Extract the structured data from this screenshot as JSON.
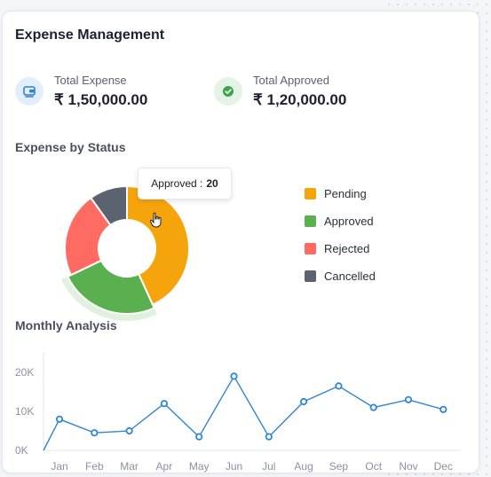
{
  "header": {
    "title": "Expense Management"
  },
  "stats": [
    {
      "label": "Total Expense",
      "value": "₹ 1,50,000.00",
      "icon": "wallet-icon",
      "icon_color": "#2f80d6",
      "icon_bg": "#e3eefb"
    },
    {
      "label": "Total Approved",
      "value": "₹ 1,20,000.00",
      "icon": "check-circle-icon",
      "icon_color": "#3fa34d",
      "icon_bg": "#e4f3e6"
    }
  ],
  "status_section": {
    "title": "Expense by Status"
  },
  "tooltip": {
    "label": "Approved :",
    "value": "20"
  },
  "legend": [
    {
      "label": "Pending",
      "color": "#f5a40c"
    },
    {
      "label": "Approved",
      "color": "#5aaf4f"
    },
    {
      "label": "Rejected",
      "color": "#ff6b62"
    },
    {
      "label": "Cancelled",
      "color": "#5c6270"
    }
  ],
  "monthly_section": {
    "title": "Monthly Analysis"
  },
  "chart_data": [
    {
      "type": "pie",
      "variant": "donut",
      "categories": [
        "Pending",
        "Approved",
        "Rejected",
        "Cancelled"
      ],
      "values": [
        35,
        20,
        18,
        8
      ],
      "colors": [
        "#f5a40c",
        "#5aaf4f",
        "#ff6b62",
        "#5c6270"
      ],
      "highlighted": "Approved",
      "legend_position": "right"
    },
    {
      "type": "line",
      "categories": [
        "Jan",
        "Feb",
        "Mar",
        "Apr",
        "May",
        "Jun",
        "Jul",
        "Aug",
        "Sep",
        "Oct",
        "Nov",
        "Dec"
      ],
      "series": [
        {
          "values": [
            8000,
            4500,
            5000,
            12000,
            3500,
            19000,
            3500,
            12500,
            16500,
            11000,
            13000,
            10500
          ]
        }
      ],
      "ylim": [
        0,
        20000
      ],
      "yticks": [
        "0K",
        "10K",
        "20K"
      ],
      "line_color": "#2f86d6",
      "grid": false
    }
  ]
}
